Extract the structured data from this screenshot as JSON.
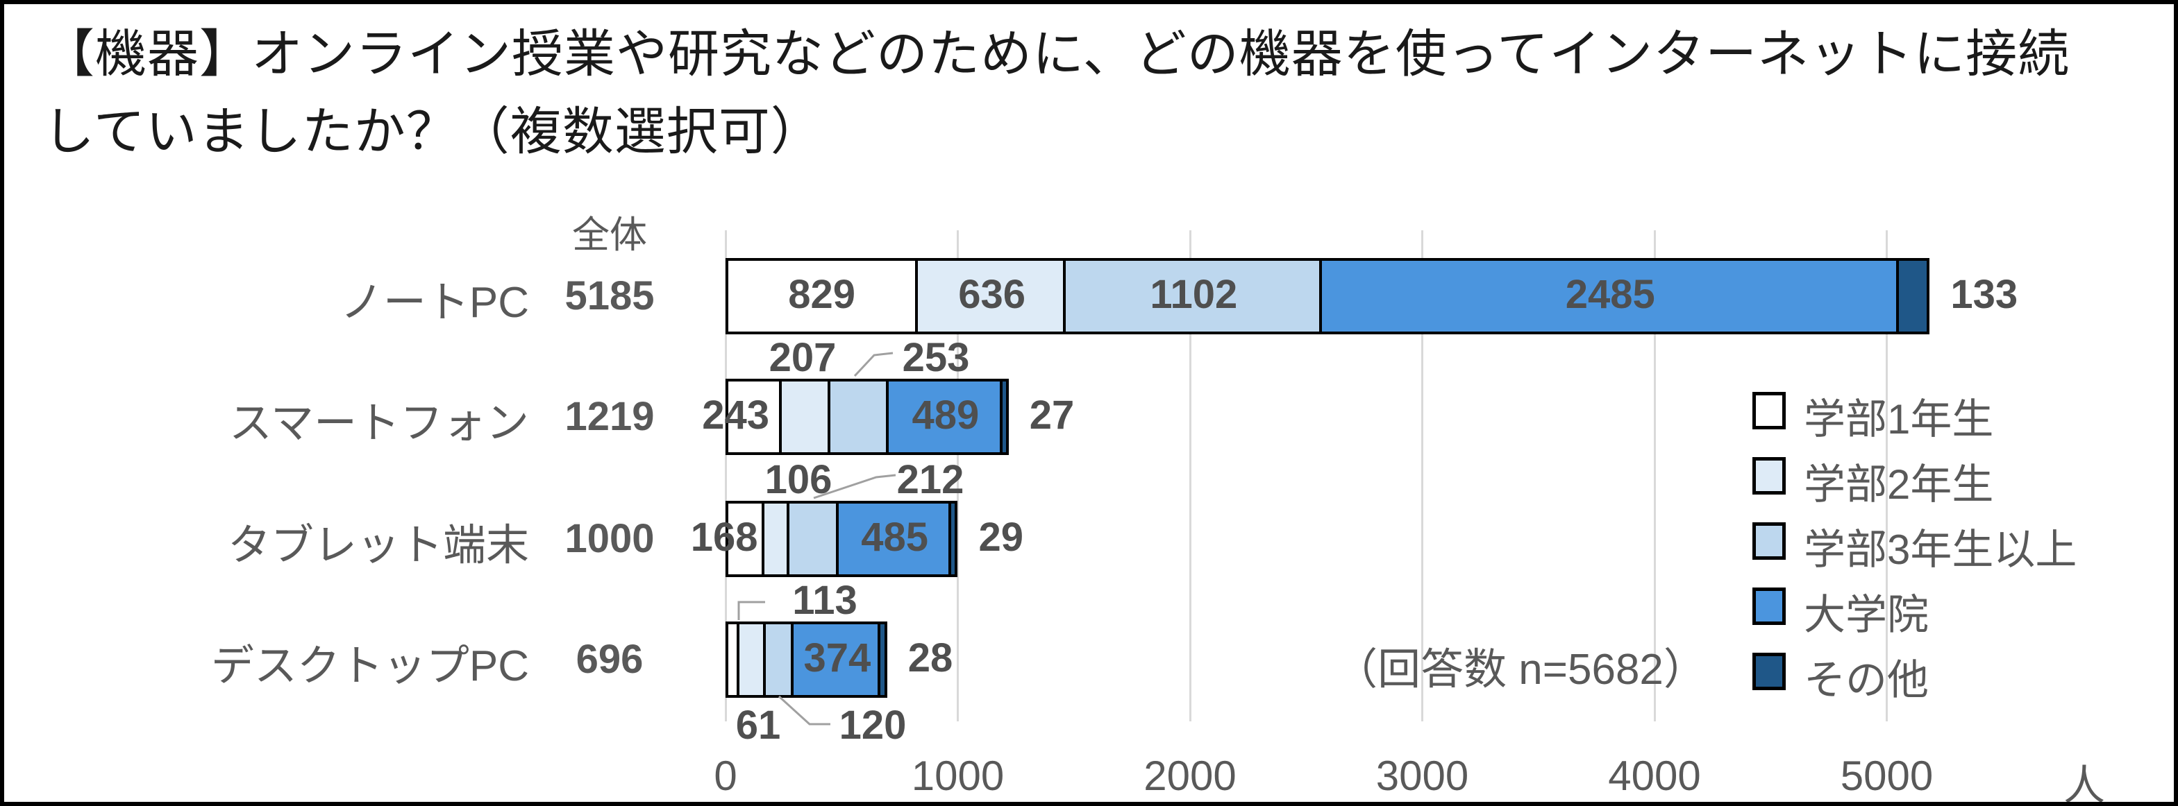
{
  "title": {
    "line1": "【機器】オンライン授業や研究などのために、どの機器を使ってインターネットに接続",
    "line2": "していましたか？（複数選択可）"
  },
  "chart_data": {
    "type": "bar",
    "orientation": "horizontal",
    "stacked": true,
    "totals_header": "全体",
    "categories": [
      "ノートPC",
      "スマートフォン",
      "タブレット端末",
      "デスクトップPC"
    ],
    "totals": [
      5185,
      1219,
      1000,
      696
    ],
    "series": [
      {
        "name": "学部1年生",
        "color": "#ffffff",
        "values": [
          829,
          243,
          168,
          61
        ]
      },
      {
        "name": "学部2年生",
        "color": "#deebf7",
        "values": [
          636,
          207,
          106,
          113
        ]
      },
      {
        "name": "学部3年生以上",
        "color": "#bdd7ee",
        "values": [
          1102,
          253,
          212,
          120
        ]
      },
      {
        "name": "大学院",
        "color": "#4b95de",
        "values": [
          2485,
          489,
          485,
          374
        ]
      },
      {
        "name": "その他",
        "color": "#1f5788",
        "values": [
          133,
          27,
          29,
          28
        ]
      }
    ],
    "annotation": "（回答数 n=5682）",
    "x_axis": {
      "tick_labels": [
        "0",
        "1000",
        "2000",
        "3000",
        "4000",
        "5000"
      ],
      "tick_values": [
        0,
        1000,
        2000,
        3000,
        4000,
        5000
      ],
      "unit": "人",
      "max": 6000
    },
    "legend_position": "right",
    "grid": true,
    "colors": {
      "grid": "#d9d9d9",
      "label_text": "#595959",
      "border": "#000000",
      "leader_line": "#a0a0a0"
    }
  }
}
